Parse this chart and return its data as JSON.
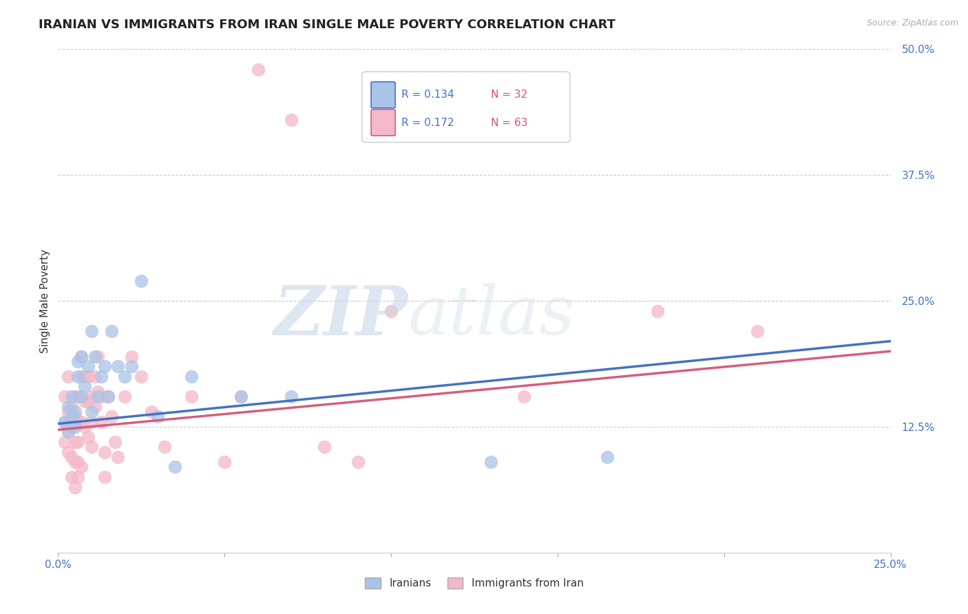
{
  "title": "IRANIAN VS IMMIGRANTS FROM IRAN SINGLE MALE POVERTY CORRELATION CHART",
  "source_text": "Source: ZipAtlas.com",
  "ylabel": "Single Male Poverty",
  "xlim": [
    0.0,
    0.25
  ],
  "ylim": [
    0.0,
    0.5
  ],
  "xtick_vals": [
    0.0,
    0.05,
    0.1,
    0.15,
    0.2,
    0.25
  ],
  "xtick_labels": [
    "0.0%",
    "",
    "",
    "",
    "",
    "25.0%"
  ],
  "ytick_vals": [
    0.0,
    0.125,
    0.25,
    0.375,
    0.5
  ],
  "ytick_labels": [
    "",
    "12.5%",
    "25.0%",
    "37.5%",
    "50.0%"
  ],
  "grid_color": "#cccccc",
  "background_color": "#ffffff",
  "iranians_color": "#aac4e8",
  "immigrants_color": "#f5b8c8",
  "iranians_line_color": "#4472c4",
  "immigrants_line_color": "#d45f7a",
  "legend_R1": "R = 0.134",
  "legend_N1": "N = 32",
  "legend_R2": "R = 0.172",
  "legend_N2": "N = 63",
  "legend_label1": "Iranians",
  "legend_label2": "Immigrants from Iran",
  "title_fontsize": 13,
  "axis_label_fontsize": 11,
  "tick_fontsize": 11,
  "watermark_text": "ZIPatlas",
  "iranians_x": [
    0.002,
    0.003,
    0.003,
    0.004,
    0.004,
    0.005,
    0.005,
    0.006,
    0.006,
    0.007,
    0.007,
    0.008,
    0.009,
    0.01,
    0.01,
    0.011,
    0.012,
    0.013,
    0.014,
    0.015,
    0.016,
    0.018,
    0.02,
    0.022,
    0.025,
    0.03,
    0.035,
    0.04,
    0.055,
    0.07,
    0.13,
    0.165
  ],
  "iranians_y": [
    0.13,
    0.145,
    0.12,
    0.135,
    0.155,
    0.14,
    0.125,
    0.19,
    0.175,
    0.195,
    0.155,
    0.165,
    0.185,
    0.14,
    0.22,
    0.195,
    0.155,
    0.175,
    0.185,
    0.155,
    0.22,
    0.185,
    0.175,
    0.185,
    0.27,
    0.135,
    0.085,
    0.175,
    0.155,
    0.155,
    0.09,
    0.095
  ],
  "immigrants_x": [
    0.002,
    0.002,
    0.002,
    0.003,
    0.003,
    0.003,
    0.003,
    0.004,
    0.004,
    0.004,
    0.004,
    0.005,
    0.005,
    0.005,
    0.005,
    0.005,
    0.006,
    0.006,
    0.006,
    0.006,
    0.006,
    0.007,
    0.007,
    0.007,
    0.007,
    0.007,
    0.008,
    0.008,
    0.008,
    0.009,
    0.009,
    0.009,
    0.01,
    0.01,
    0.01,
    0.011,
    0.011,
    0.012,
    0.012,
    0.013,
    0.013,
    0.014,
    0.014,
    0.015,
    0.016,
    0.017,
    0.018,
    0.02,
    0.022,
    0.025,
    0.028,
    0.032,
    0.04,
    0.05,
    0.055,
    0.06,
    0.07,
    0.08,
    0.09,
    0.1,
    0.14,
    0.18,
    0.21
  ],
  "immigrants_y": [
    0.13,
    0.11,
    0.155,
    0.14,
    0.12,
    0.1,
    0.175,
    0.145,
    0.125,
    0.095,
    0.075,
    0.155,
    0.135,
    0.11,
    0.09,
    0.065,
    0.155,
    0.13,
    0.11,
    0.09,
    0.075,
    0.195,
    0.175,
    0.155,
    0.13,
    0.085,
    0.175,
    0.15,
    0.125,
    0.175,
    0.15,
    0.115,
    0.155,
    0.13,
    0.105,
    0.175,
    0.145,
    0.195,
    0.16,
    0.155,
    0.13,
    0.1,
    0.075,
    0.155,
    0.135,
    0.11,
    0.095,
    0.155,
    0.195,
    0.175,
    0.14,
    0.105,
    0.155,
    0.09,
    0.155,
    0.48,
    0.43,
    0.105,
    0.09,
    0.24,
    0.155,
    0.24,
    0.22
  ],
  "line1_x0": 0.0,
  "line1_y0": 0.128,
  "line1_x1": 0.25,
  "line1_y1": 0.21,
  "line2_x0": 0.0,
  "line2_y0": 0.122,
  "line2_x1": 0.25,
  "line2_y1": 0.2
}
